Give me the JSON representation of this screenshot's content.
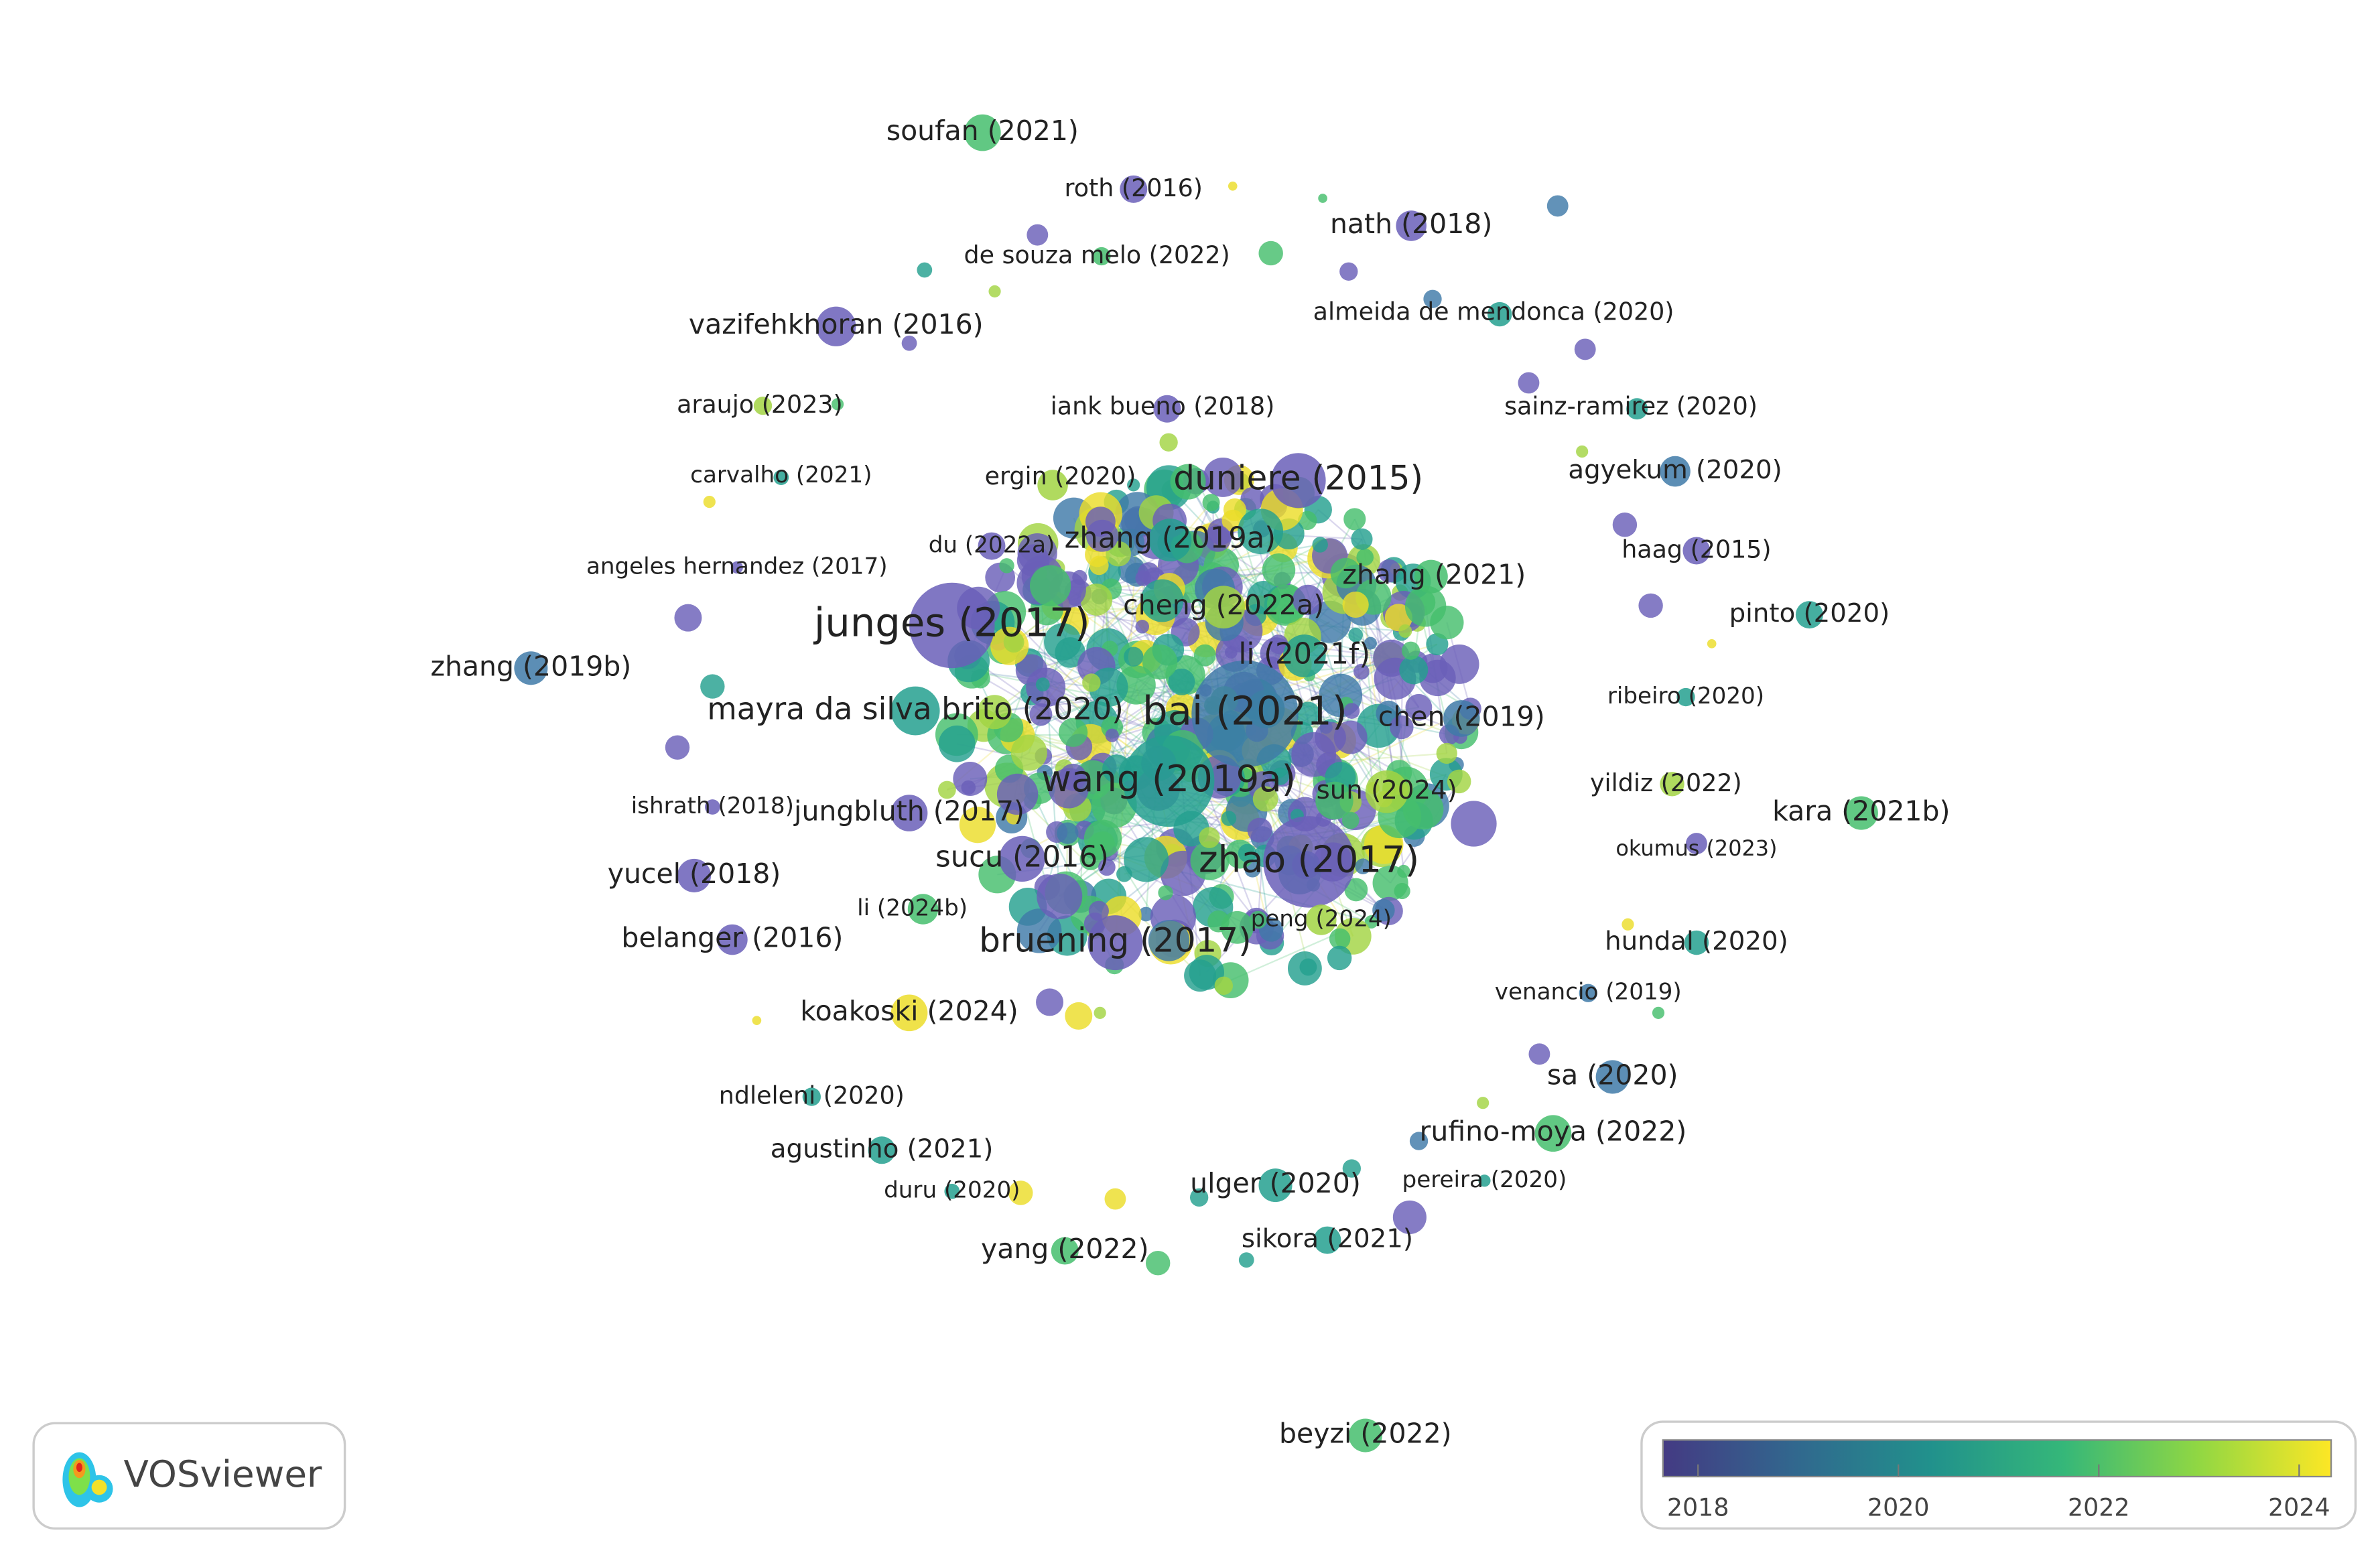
{
  "network": {
    "nodes": [
      {
        "label": "soufan (2021)"
      },
      {
        "label": "roth (2016)"
      },
      {
        "label": "nath (2018)"
      },
      {
        "label": "de souza melo (2022)"
      },
      {
        "label": "vazifehkhoran (2016)"
      },
      {
        "label": "almeida de mendonca (2020)"
      },
      {
        "label": "araujo (2023)"
      },
      {
        "label": "iank bueno (2018)"
      },
      {
        "label": "sainz-ramirez (2020)"
      },
      {
        "label": "carvalho (2021)"
      },
      {
        "label": "ergin (2020)"
      },
      {
        "label": "duniere (2015)"
      },
      {
        "label": "agyekum (2020)"
      },
      {
        "label": "du (2022a)"
      },
      {
        "label": "zhang (2019a)"
      },
      {
        "label": "angeles hernandez (2017)"
      },
      {
        "label": "haag (2015)"
      },
      {
        "label": "zhang (2021)"
      },
      {
        "label": "junges (2017)"
      },
      {
        "label": "cheng (2022a)"
      },
      {
        "label": "pinto (2020)"
      },
      {
        "label": "zhang (2019b)"
      },
      {
        "label": "li (2021f)"
      },
      {
        "label": "ribeiro (2020)"
      },
      {
        "label": "mayra da silva brito (2020)"
      },
      {
        "label": "bai (2021)"
      },
      {
        "label": "chen (2019)"
      },
      {
        "label": "yildiz (2022)"
      },
      {
        "label": "wang (2019a)"
      },
      {
        "label": "sun (2024)"
      },
      {
        "label": "kara (2021b)"
      },
      {
        "label": "jungbluth (2017)"
      },
      {
        "label": "ishrath (2018)"
      },
      {
        "label": "okumus (2023)"
      },
      {
        "label": "yucel (2018)"
      },
      {
        "label": "sucu (2016)"
      },
      {
        "label": "zhao (2017)"
      },
      {
        "label": "li (2024b)"
      },
      {
        "label": "peng (2024)"
      },
      {
        "label": "belanger (2016)"
      },
      {
        "label": "bruening (2017)"
      },
      {
        "label": "hundal (2020)"
      },
      {
        "label": "venancio (2019)"
      },
      {
        "label": "koakoski (2024)"
      },
      {
        "label": "sa (2020)"
      },
      {
        "label": "ndleleni (2020)"
      },
      {
        "label": "rufino-moya (2022)"
      },
      {
        "label": "agustinho (2021)"
      },
      {
        "label": "duru (2020)"
      },
      {
        "label": "ulger (2020)"
      },
      {
        "label": "pereira (2020)"
      },
      {
        "label": "sikora (2021)"
      },
      {
        "label": "yang (2022)"
      },
      {
        "label": "beyzi (2022)"
      }
    ]
  },
  "legend": {
    "ticks": [
      2018,
      2020,
      2022,
      2024
    ]
  },
  "logo": {
    "text": "VOSviewer"
  }
}
